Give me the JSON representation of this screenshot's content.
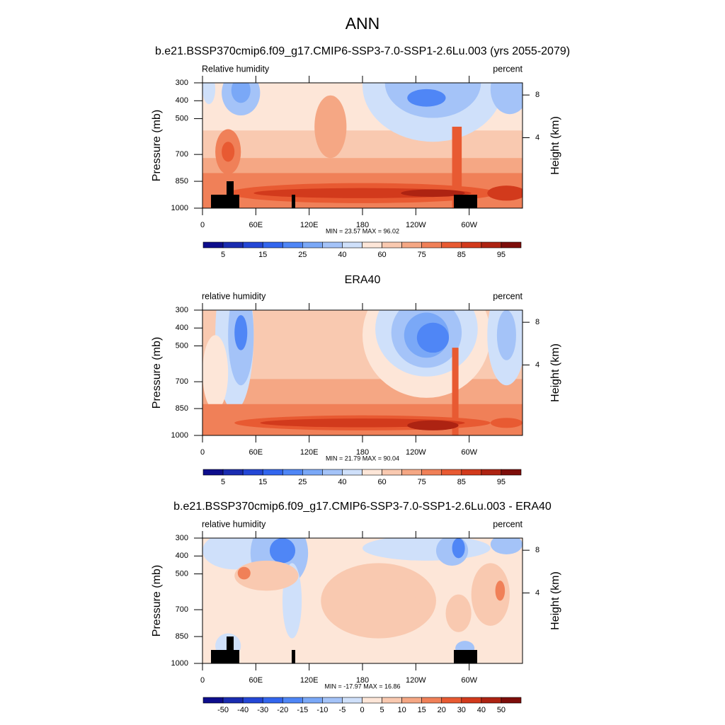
{
  "title": "ANN",
  "chart_data": [
    {
      "type": "contour",
      "title": "b.e21.BSSP370cmip6.f09_g17.CMIP6-SSP3-7.0-SSP1-2.6Lu.003 (yrs 2055-2079)",
      "left_label": "Relative humidity",
      "right_label": "percent",
      "ylabel": "Pressure (mb)",
      "y2label": "Height (km)",
      "ylim": [
        1000,
        300
      ],
      "yticks": [
        300,
        400,
        500,
        700,
        850,
        1000
      ],
      "y2ticks": [
        4,
        8
      ],
      "xlim": [
        0,
        360
      ],
      "xticks": [
        0,
        {
          "value": 60,
          "label": "60E"
        },
        {
          "value": 120,
          "label": "120E"
        },
        180,
        {
          "value": 240,
          "label": "120W"
        },
        {
          "value": 300,
          "label": "60W"
        }
      ],
      "stats": "MIN =  23.57  MAX =  96.02",
      "levels": [
        5,
        15,
        25,
        40,
        60,
        75,
        85,
        95
      ],
      "colors": [
        "#0d0d8c",
        "#1a2cb0",
        "#2447d6",
        "#3366ee",
        "#4f86f6",
        "#7aa8f7",
        "#a4c3f8",
        "#cfe0fa",
        "#fde6d8",
        "#f9c9b0",
        "#f5a784",
        "#f08058",
        "#e85a32",
        "#d23a1c",
        "#ad2312",
        "#7d0d0a"
      ]
    },
    {
      "type": "contour",
      "title": "ERA40",
      "left_label": "relative humidity",
      "right_label": "percent",
      "ylabel": "Pressure (mb)",
      "y2label": "Height (km)",
      "ylim": [
        1000,
        300
      ],
      "yticks": [
        300,
        400,
        500,
        700,
        850,
        1000
      ],
      "y2ticks": [
        4,
        8
      ],
      "xlim": [
        0,
        360
      ],
      "xticks": [
        0,
        {
          "value": 60,
          "label": "60E"
        },
        {
          "value": 120,
          "label": "120E"
        },
        180,
        {
          "value": 240,
          "label": "120W"
        },
        {
          "value": 300,
          "label": "60W"
        }
      ],
      "stats": "MIN =  21.79  MAX =  90.04",
      "levels": [
        5,
        15,
        25,
        40,
        60,
        75,
        85,
        95
      ],
      "colors": [
        "#0d0d8c",
        "#1a2cb0",
        "#2447d6",
        "#3366ee",
        "#4f86f6",
        "#7aa8f7",
        "#a4c3f8",
        "#cfe0fa",
        "#fde6d8",
        "#f9c9b0",
        "#f5a784",
        "#f08058",
        "#e85a32",
        "#d23a1c",
        "#ad2312",
        "#7d0d0a"
      ]
    },
    {
      "type": "contour",
      "title": "b.e21.BSSP370cmip6.f09_g17.CMIP6-SSP3-7.0-SSP1-2.6Lu.003 - ERA40",
      "left_label": "relative humidity",
      "right_label": "percent",
      "ylabel": "Pressure (mb)",
      "y2label": "Height (km)",
      "ylim": [
        1000,
        300
      ],
      "yticks": [
        300,
        400,
        500,
        700,
        850,
        1000
      ],
      "y2ticks": [
        4,
        8
      ],
      "xlim": [
        0,
        360
      ],
      "xticks": [
        0,
        {
          "value": 60,
          "label": "60E"
        },
        {
          "value": 120,
          "label": "120E"
        },
        180,
        {
          "value": 240,
          "label": "120W"
        },
        {
          "value": 300,
          "label": "60W"
        }
      ],
      "stats": "MIN = -17.97  MAX =  16.86",
      "levels": [
        -50,
        -40,
        -30,
        -20,
        -15,
        -10,
        -5,
        0,
        5,
        10,
        15,
        20,
        30,
        40,
        50
      ],
      "colors": [
        "#0d0d8c",
        "#1a2cb0",
        "#2447d6",
        "#3366ee",
        "#4f86f6",
        "#7aa8f7",
        "#a4c3f8",
        "#cfe0fa",
        "#fde6d8",
        "#f9c9b0",
        "#f5a784",
        "#f08058",
        "#e85a32",
        "#d23a1c",
        "#ad2312",
        "#7d0d0a"
      ]
    }
  ]
}
